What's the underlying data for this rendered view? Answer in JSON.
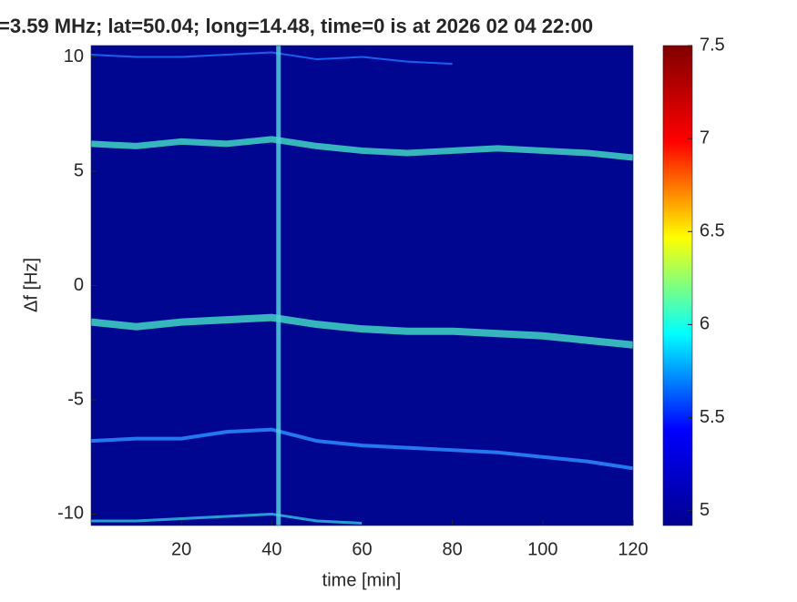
{
  "chart_data": {
    "type": "spectrogram",
    "title": "=3.59 MHz;  lat=50.04; long=14.48, time=0 is at 2026 02 04 22:00",
    "x_label": "time [min]",
    "y_label": "Δf [Hz]",
    "xlim": [
      0,
      120
    ],
    "xticks": [
      20,
      40,
      60,
      80,
      100,
      120
    ],
    "ylim": [
      -10.5,
      10.5
    ],
    "yticks": [
      -10,
      -5,
      0,
      5,
      10
    ],
    "background": "#00068f",
    "traces": [
      {
        "color": "#1f6fff",
        "width": 2,
        "x": [
          0,
          10,
          20,
          30,
          40,
          50,
          60,
          70,
          80
        ],
        "y": [
          10.1,
          10.0,
          10.0,
          10.1,
          10.2,
          9.9,
          10.0,
          9.8,
          9.7
        ]
      },
      {
        "color": "#3fd6c4",
        "width": 7,
        "x": [
          0,
          10,
          20,
          30,
          40,
          50,
          60,
          70,
          80,
          90,
          100,
          110,
          120
        ],
        "y": [
          6.2,
          6.1,
          6.3,
          6.2,
          6.4,
          6.1,
          5.9,
          5.8,
          5.9,
          6.0,
          5.9,
          5.8,
          5.6
        ]
      },
      {
        "color": "#3fd6c4",
        "width": 8,
        "x": [
          0,
          10,
          20,
          30,
          40,
          50,
          60,
          70,
          80,
          90,
          100,
          110,
          120
        ],
        "y": [
          -1.6,
          -1.8,
          -1.6,
          -1.5,
          -1.4,
          -1.7,
          -1.9,
          -2.0,
          -2.0,
          -2.1,
          -2.2,
          -2.4,
          -2.6
        ]
      },
      {
        "color": "#2a8cff",
        "width": 4,
        "x": [
          0,
          10,
          20,
          30,
          40,
          50,
          60,
          70,
          80,
          90,
          100,
          110,
          120
        ],
        "y": [
          -6.8,
          -6.7,
          -6.7,
          -6.4,
          -6.3,
          -6.8,
          -7.0,
          -7.1,
          -7.2,
          -7.3,
          -7.5,
          -7.7,
          -8.0
        ]
      },
      {
        "color": "#2fb8e0",
        "width": 3,
        "x": [
          0,
          10,
          20,
          30,
          40,
          50,
          60
        ],
        "y": [
          -10.3,
          -10.3,
          -10.2,
          -10.1,
          -10.0,
          -10.3,
          -10.4
        ]
      },
      {
        "color": "#4fd0d8",
        "width": 5,
        "x": [
          41.5,
          41.5
        ],
        "y": [
          -10.5,
          10.5
        ]
      }
    ],
    "colormap": [
      "#00008f",
      "#0000ff",
      "#00ffff",
      "#ffff00",
      "#ff0000",
      "#800000"
    ],
    "clim": [
      4.92,
      7.5
    ],
    "cticks": [
      5,
      5.5,
      6,
      6.5,
      7,
      7.5
    ]
  }
}
